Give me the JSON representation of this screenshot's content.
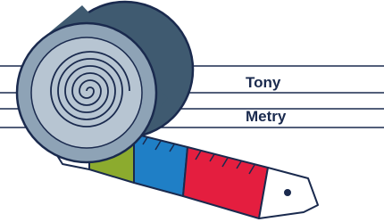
{
  "labels": {
    "top": "Tony",
    "bottom": "Metry"
  }
}
